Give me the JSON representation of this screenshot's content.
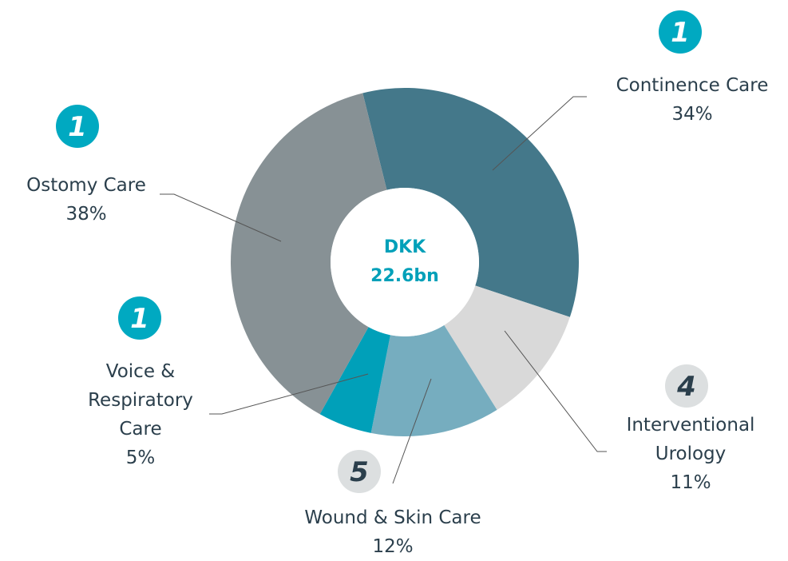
{
  "chart_data": {
    "type": "donut",
    "center_label": "DKK 22.6bn",
    "categories": [
      "Continence Care",
      "Interventional Urology",
      "Wound & Skin Care",
      "Voice & Respiratory Care",
      "Ostomy Care"
    ],
    "values": [
      34,
      11,
      12,
      5,
      38
    ],
    "value_labels": [
      "34%",
      "11%",
      "12%",
      "5%",
      "38%"
    ],
    "colors": [
      "#44788a",
      "#d9d9d9",
      "#76adbf",
      "#00a0b9",
      "#879195"
    ],
    "badges": [
      "1",
      "4",
      "5",
      "1",
      "1"
    ],
    "badge_colors": [
      "#00a9c1",
      "#dcdfe0",
      "#dcdfe0",
      "#00a9c1",
      "#00a9c1"
    ]
  }
}
